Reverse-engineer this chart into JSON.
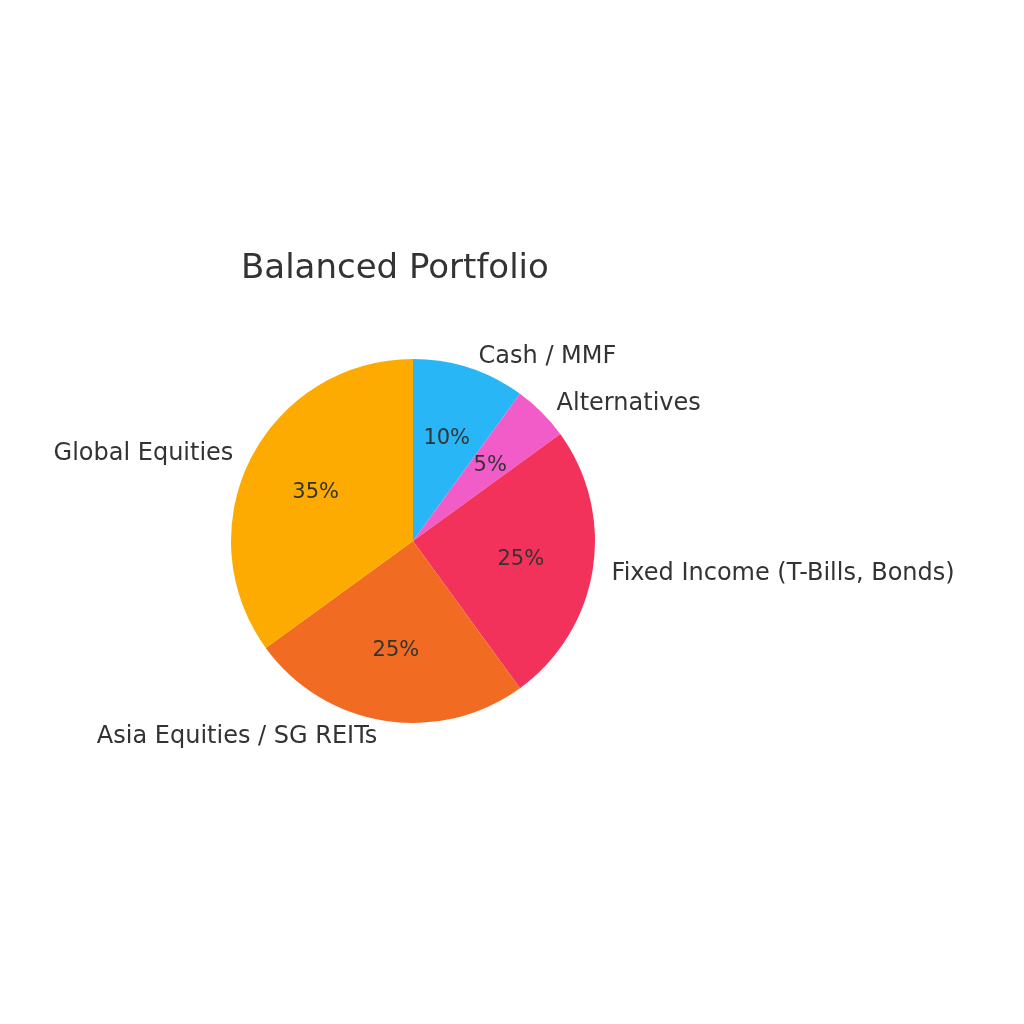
{
  "chart_data": {
    "type": "pie",
    "title": "Balanced Portfolio",
    "categories": [
      "Cash / MMF",
      "Alternatives",
      "Fixed Income (T-Bills, Bonds)",
      "Asia Equities / SG REITs",
      "Global Equities"
    ],
    "values": [
      10,
      5,
      25,
      25,
      35
    ],
    "colors": [
      "#29b6f6",
      "#f25cc8",
      "#f2325a",
      "#f26b22",
      "#fdab00"
    ],
    "value_labels": [
      "10%",
      "5%",
      "25%",
      "25%",
      "35%"
    ]
  }
}
